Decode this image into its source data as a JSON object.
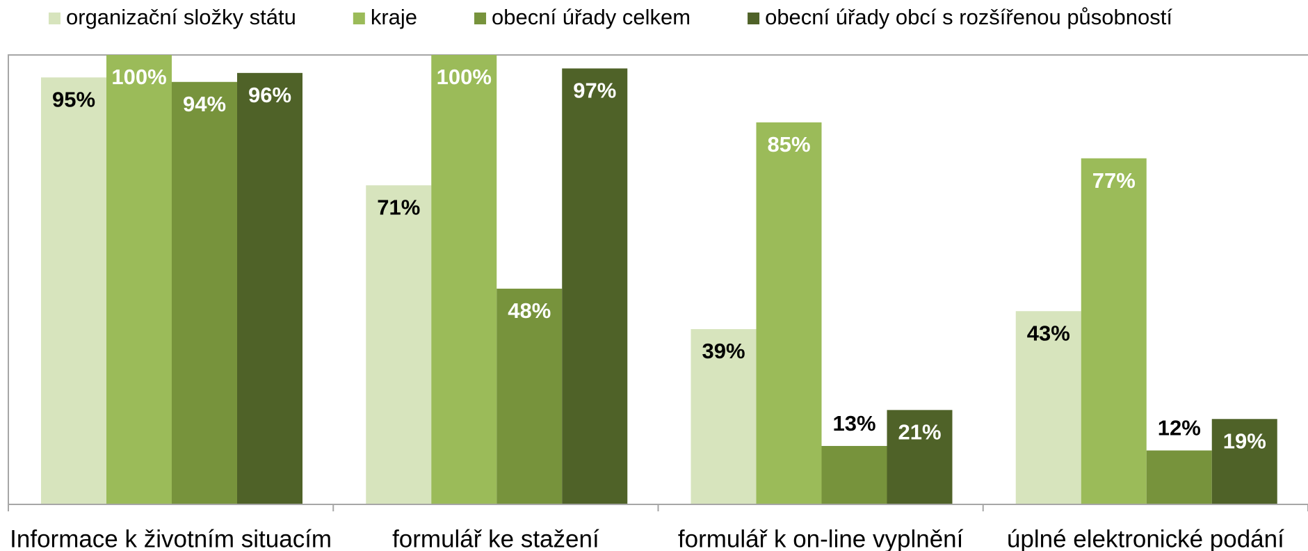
{
  "chart_data": {
    "type": "bar",
    "categories": [
      "Informace k životním situacím",
      "formulář ke stažení",
      "formulář k on-line vyplnění",
      "úplné elektronické podání"
    ],
    "series": [
      {
        "name": "organizační složky státu",
        "color": "#d7e4bd",
        "values": [
          95,
          71,
          39,
          43
        ],
        "value_labels": [
          "95%",
          "71%",
          "39%",
          "43%"
        ]
      },
      {
        "name": "kraje",
        "color": "#9bbb59",
        "values": [
          100,
          100,
          85,
          77
        ],
        "value_labels": [
          "100%",
          "100%",
          "85%",
          "77%"
        ]
      },
      {
        "name": "obecní úřady celkem",
        "color": "#77933c",
        "values": [
          94,
          48,
          13,
          12
        ],
        "value_labels": [
          "94%",
          "48%",
          "13%",
          "12%"
        ]
      },
      {
        "name": "obecní úřady obcí s rozšířenou působností",
        "color": "#4f6228",
        "values": [
          96,
          97,
          21,
          19
        ],
        "value_labels": [
          "96%",
          "97%",
          "21%",
          "19%"
        ]
      }
    ],
    "ylim": [
      0,
      100
    ]
  }
}
